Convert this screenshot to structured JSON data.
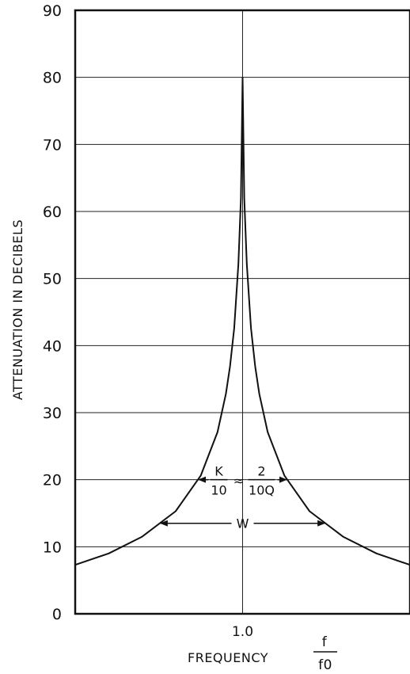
{
  "chart_data": {
    "type": "line",
    "ylabel": "ATTENUATION IN DECIBELS",
    "xlabel": "FREQUENCY",
    "x_ratio_label": {
      "numerator": "f",
      "denominator": "f0"
    },
    "ylim": [
      0,
      90
    ],
    "yticks": [
      0,
      10,
      20,
      30,
      40,
      50,
      60,
      70,
      80,
      90
    ],
    "ytick_labels": [
      "0",
      "10",
      "20",
      "30",
      "40",
      "50",
      "60",
      "70",
      "80",
      "90"
    ],
    "xlim": [
      0.8,
      1.2
    ],
    "xticks": [
      1.0
    ],
    "xtick_labels": [
      "1.0"
    ],
    "grid": true,
    "series": [
      {
        "x": [
          0.8,
          0.84,
          0.88,
          0.92,
          0.95,
          0.97,
          0.98,
          0.985,
          0.99,
          0.995,
          0.998,
          1.0,
          1.002,
          1.005,
          1.01,
          1.015,
          1.02,
          1.03,
          1.05,
          1.08,
          1.12,
          1.16,
          1.2
        ],
        "y": [
          7.3,
          9.0,
          11.5,
          15.3,
          20.6,
          27.1,
          32.8,
          36.9,
          42.6,
          52.2,
          62,
          80,
          62,
          52.2,
          42.6,
          36.9,
          32.8,
          27.1,
          20.6,
          15.3,
          11.5,
          9.0,
          7.3
        ]
      }
    ],
    "annotations": [
      {
        "type": "double-arrow",
        "y": 20,
        "label": {
          "left_num": "K",
          "left_den": "10",
          "relation": "≈",
          "right_num": "2",
          "right_den": "10Q"
        }
      },
      {
        "type": "double-arrow",
        "y": 13.5,
        "label": "W"
      }
    ]
  }
}
